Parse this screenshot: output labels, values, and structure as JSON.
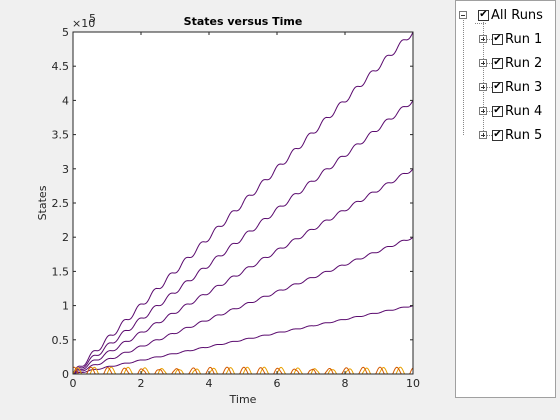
{
  "tree": {
    "root_label": "All Runs",
    "root_checked": true,
    "runs": [
      {
        "label": "Run 1",
        "checked": true
      },
      {
        "label": "Run 2",
        "checked": true
      },
      {
        "label": "Run 3",
        "checked": true
      },
      {
        "label": "Run 4",
        "checked": true
      },
      {
        "label": "Run 5",
        "checked": true
      }
    ],
    "check_glyph": "✔"
  },
  "chart_data": {
    "type": "line",
    "title": "States versus Time",
    "xlabel": "Time",
    "ylabel": "States",
    "y_exponent_label": "×10",
    "y_exponent_power": "5",
    "xlim": [
      0,
      10
    ],
    "ylim": [
      0,
      5
    ],
    "y_units": "×10^5",
    "x_ticks": [
      "0",
      "2",
      "4",
      "6",
      "8",
      "10"
    ],
    "y_ticks": [
      "0",
      "0.5",
      "1",
      "1.5",
      "2",
      "2.5",
      "3",
      "3.5",
      "4",
      "4.5",
      "5"
    ],
    "grid": false,
    "series": [
      {
        "color": "#5a0a6e",
        "x": [
          0,
          10
        ],
        "y": [
          0,
          1.0
        ],
        "wavy": true
      },
      {
        "color": "#5a0a6e",
        "x": [
          0,
          10
        ],
        "y": [
          0,
          2.0
        ],
        "wavy": true
      },
      {
        "color": "#5a0a6e",
        "x": [
          0,
          10
        ],
        "y": [
          0,
          3.0
        ],
        "wavy": true
      },
      {
        "color": "#5a0a6e",
        "x": [
          0,
          10
        ],
        "y": [
          0,
          4.0
        ],
        "wavy": true
      },
      {
        "color": "#5a0a6e",
        "x": [
          0,
          10
        ],
        "y": [
          0,
          5.0
        ],
        "wavy": true
      },
      {
        "color": "#e8a000",
        "x": [
          0,
          10
        ],
        "y": [
          0,
          0.1
        ],
        "oscillating": true
      },
      {
        "color": "#d45a00",
        "x": [
          0,
          10
        ],
        "y": [
          0,
          0.1
        ],
        "oscillating": true
      }
    ]
  }
}
